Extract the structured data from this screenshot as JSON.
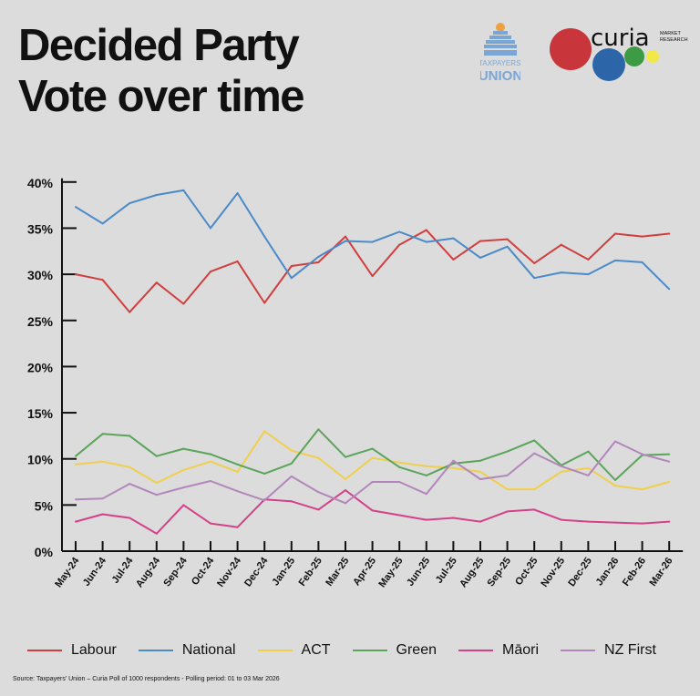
{
  "title_line1": "Decided Party",
  "title_line2": "Vote over time",
  "logos": {
    "taxpayers_union": "TAXPAYERS' UNION",
    "curia": "curia",
    "curia_sub": "MARKET RESEARCH"
  },
  "source": "Source: Taxpayers' Union – Curia Poll of 1000 respondents - Polling period: 01 to 03 Mar 2026",
  "chart_data": {
    "type": "line",
    "title": "Decided Party Vote over time",
    "xlabel": "",
    "ylabel": "",
    "ylim": [
      0,
      40
    ],
    "yticks": [
      "0%",
      "5%",
      "10%",
      "15%",
      "20%",
      "25%",
      "30%",
      "35%",
      "40%"
    ],
    "grid": false,
    "legend": "bottom",
    "categories": [
      "May-24",
      "Jun-24",
      "Jul-24",
      "Aug-24",
      "Sep-24",
      "Oct-24",
      "Nov-24",
      "Dec-24",
      "Jan-25",
      "Feb-25",
      "Mar-25",
      "Apr-25",
      "May-25",
      "Jun-25",
      "Jul-25",
      "Aug-25",
      "Sep-25",
      "Oct-25",
      "Nov-25",
      "Dec-25",
      "Jan-26",
      "Feb-26",
      "Mar-26"
    ],
    "series": [
      {
        "name": "Labour",
        "color": "#d13e3e",
        "values": [
          30.0,
          29.4,
          25.9,
          29.1,
          26.8,
          30.3,
          31.4,
          26.9,
          30.9,
          31.3,
          34.1,
          29.8,
          33.2,
          34.8,
          31.6,
          33.6,
          33.8,
          31.2,
          33.2,
          31.6,
          34.4,
          34.1,
          34.4
        ]
      },
      {
        "name": "National",
        "color": "#4a8ac8",
        "values": [
          37.3,
          35.5,
          37.7,
          38.6,
          39.1,
          35.0,
          38.8,
          34.1,
          29.6,
          31.9,
          33.6,
          33.5,
          34.6,
          33.5,
          33.9,
          31.8,
          33.0,
          29.6,
          30.2,
          30.0,
          31.5,
          31.3,
          28.4
        ]
      },
      {
        "name": "ACT",
        "color": "#f0cf4c",
        "values": [
          9.4,
          9.7,
          9.1,
          7.4,
          8.8,
          9.7,
          8.6,
          13.0,
          10.9,
          10.1,
          7.8,
          10.1,
          9.6,
          9.2,
          9.0,
          8.6,
          6.7,
          6.7,
          8.6,
          9.0,
          7.1,
          6.7,
          7.5
        ]
      },
      {
        "name": "Green",
        "color": "#5aa55a",
        "values": [
          10.3,
          12.7,
          12.5,
          10.3,
          11.1,
          10.5,
          9.4,
          8.4,
          9.5,
          13.2,
          10.2,
          11.1,
          9.1,
          8.2,
          9.5,
          9.8,
          10.8,
          12.0,
          9.3,
          10.8,
          7.7,
          10.4,
          10.5
        ]
      },
      {
        "name": "Māori",
        "color": "#d4408a",
        "values": [
          3.2,
          4.0,
          3.6,
          1.9,
          5.0,
          3.0,
          2.6,
          5.6,
          5.4,
          4.5,
          6.6,
          4.4,
          3.9,
          3.4,
          3.6,
          3.2,
          4.3,
          4.5,
          3.4,
          3.2,
          3.1,
          3.0,
          3.2
        ]
      },
      {
        "name": "NZ First",
        "color": "#b386bb",
        "values": [
          5.6,
          5.7,
          7.3,
          6.1,
          6.9,
          7.6,
          6.5,
          5.5,
          8.1,
          6.4,
          5.2,
          7.5,
          7.5,
          6.2,
          9.8,
          7.8,
          8.2,
          10.6,
          9.2,
          8.2,
          11.9,
          10.5,
          9.7
        ]
      }
    ]
  }
}
